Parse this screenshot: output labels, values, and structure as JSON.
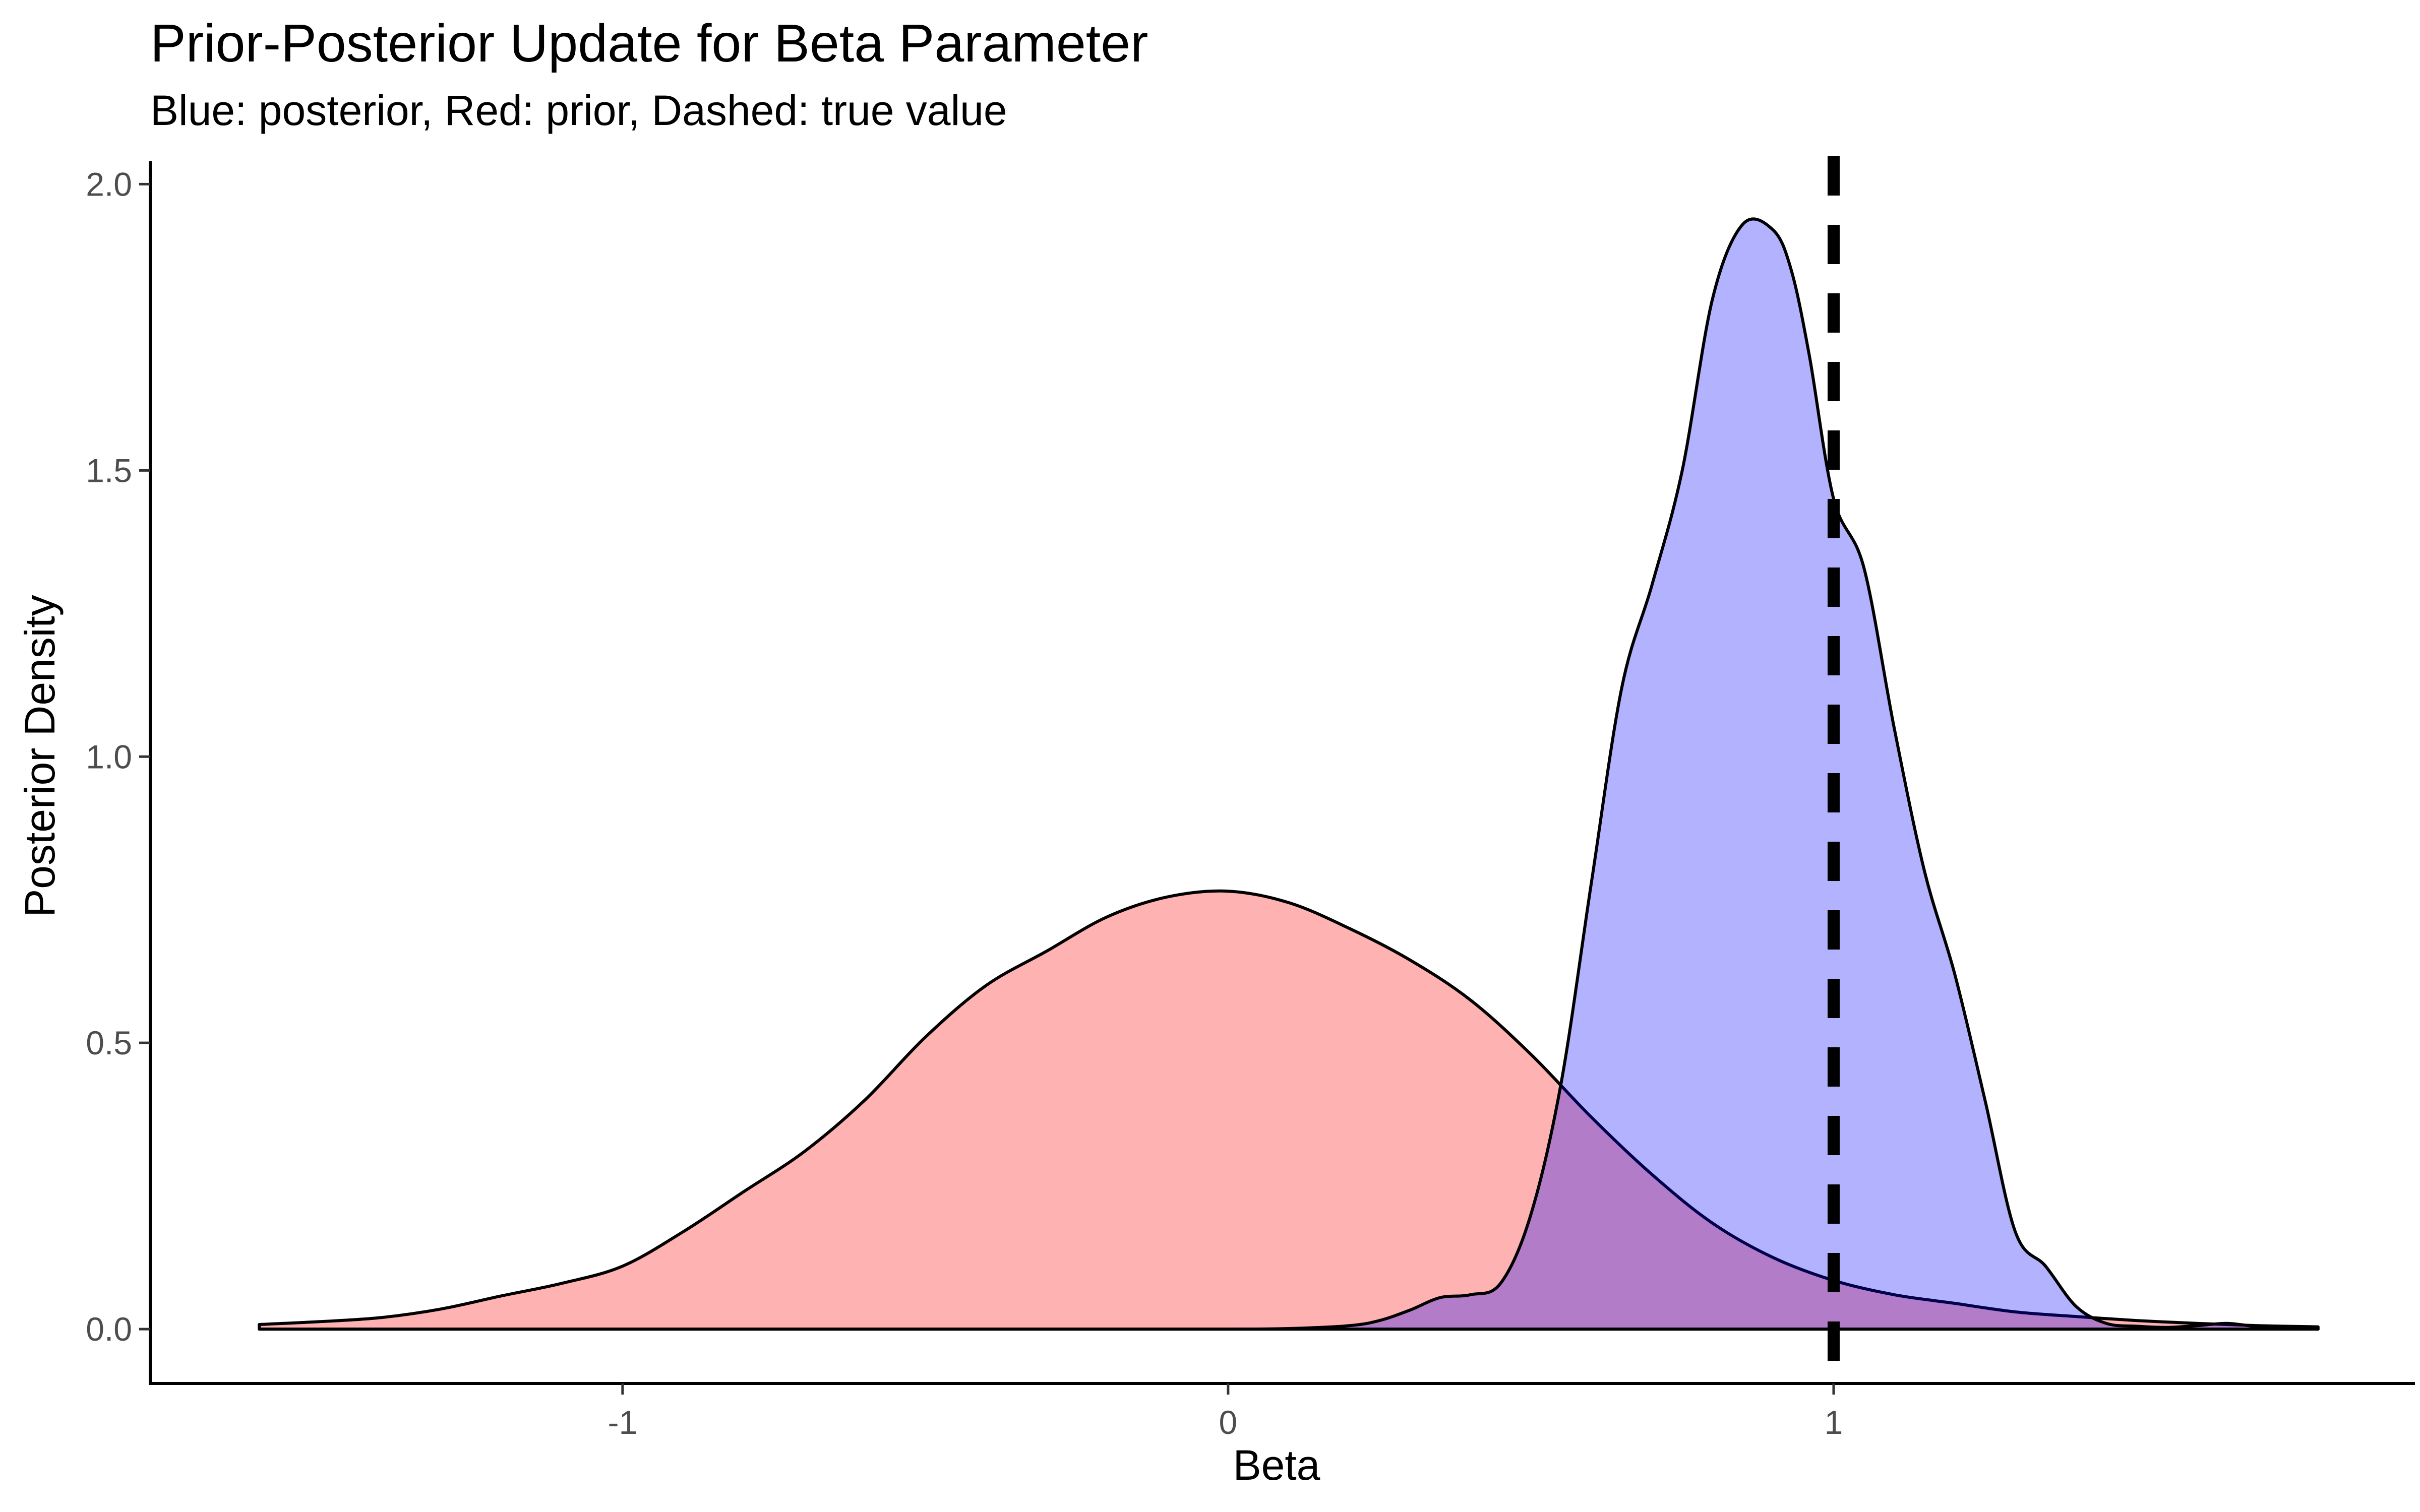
{
  "chart_data": {
    "type": "area",
    "title": "Prior-Posterior Update for Beta Parameter",
    "subtitle": "Blue: posterior, Red: prior, Dashed: true value",
    "xlabel": "Beta",
    "ylabel": "Posterior Density",
    "xlim": [
      -1.78,
      1.96
    ],
    "ylim": [
      -0.095,
      2.04
    ],
    "x_ticks": [
      {
        "value": -1,
        "label": "-1"
      },
      {
        "value": 0,
        "label": "0"
      },
      {
        "value": 1,
        "label": "1"
      }
    ],
    "y_ticks": [
      {
        "value": 0,
        "label": "0.0"
      },
      {
        "value": 0.5,
        "label": "0.5"
      },
      {
        "value": 1,
        "label": "1.0"
      },
      {
        "value": 1.5,
        "label": "1.5"
      },
      {
        "value": 2,
        "label": "2.0"
      }
    ],
    "grid": false,
    "legend": "none",
    "series": [
      {
        "fill": "#FF0000",
        "fill_opacity": 0.3,
        "x": [
          -1.6,
          -1.5,
          -1.4,
          -1.3,
          -1.2,
          -1.1,
          -1.0,
          -0.9,
          -0.8,
          -0.7,
          -0.6,
          -0.5,
          -0.4,
          -0.3,
          -0.2,
          -0.1,
          0.0,
          0.1,
          0.2,
          0.3,
          0.4,
          0.5,
          0.6,
          0.7,
          0.8,
          0.9,
          1.0,
          1.1,
          1.2,
          1.3,
          1.4,
          1.5,
          1.6,
          1.7,
          1.8
        ],
        "y": [
          0.008,
          0.013,
          0.02,
          0.035,
          0.058,
          0.08,
          0.11,
          0.17,
          0.24,
          0.31,
          0.4,
          0.51,
          0.6,
          0.66,
          0.72,
          0.755,
          0.765,
          0.745,
          0.7,
          0.645,
          0.575,
          0.48,
          0.37,
          0.27,
          0.185,
          0.125,
          0.085,
          0.06,
          0.045,
          0.03,
          0.022,
          0.015,
          0.01,
          0.006,
          0.004
        ]
      },
      {
        "fill": "#0000FF",
        "fill_opacity": 0.3,
        "x": [
          -1.6,
          -0.2,
          0.0,
          0.1,
          0.2,
          0.25,
          0.3,
          0.35,
          0.4,
          0.45,
          0.5,
          0.55,
          0.6,
          0.65,
          0.7,
          0.75,
          0.8,
          0.85,
          0.9,
          0.93,
          0.96,
          1.0,
          1.05,
          1.1,
          1.15,
          1.2,
          1.25,
          1.3,
          1.35,
          1.4,
          1.45,
          1.5,
          1.55,
          1.6,
          1.65,
          1.7,
          1.75,
          1.8
        ],
        "y": [
          0,
          0,
          0.0,
          0.001,
          0.006,
          0.015,
          0.033,
          0.055,
          0.06,
          0.08,
          0.2,
          0.43,
          0.78,
          1.12,
          1.3,
          1.5,
          1.8,
          1.93,
          1.92,
          1.85,
          1.7,
          1.45,
          1.33,
          1.05,
          0.8,
          0.62,
          0.4,
          0.17,
          0.11,
          0.04,
          0.01,
          0.005,
          0.003,
          0.006,
          0.01,
          0.004,
          0.0,
          0.0
        ]
      }
    ],
    "reference_lines": [
      {
        "axis": "x",
        "value": 1.0,
        "style": "dashed",
        "color": "#000000"
      }
    ]
  }
}
